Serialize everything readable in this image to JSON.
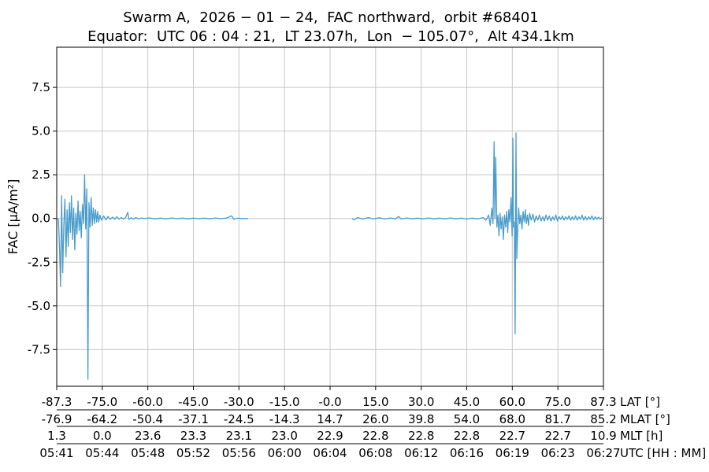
{
  "chart_data": {
    "type": "line",
    "title_line1": "Swarm A,  2026 − 01 − 24,  FAC northward,  orbit #68401",
    "title_line2": "Equator:  UTC 06 : 04 : 21,  LT 23.07h,  Lon  − 105.07°,  Alt 434.1km",
    "ylabel": "FAC [μA/m²]",
    "ylim": [
      -9.6,
      9.8
    ],
    "xlim": [
      0,
      100
    ],
    "grid": true,
    "y_ticks": [
      -7.5,
      -5.0,
      -2.5,
      0.0,
      2.5,
      5.0,
      7.5
    ],
    "y_tick_labels": [
      "-7.5",
      "-5.0",
      "-2.5",
      "0.0",
      "2.5",
      "5.0",
      "7.5"
    ],
    "x_tick_positions": [
      0,
      8.33,
      16.67,
      25,
      33.33,
      41.67,
      50,
      58.33,
      66.67,
      75,
      83.33,
      91.67,
      100
    ],
    "x_axis_rows": [
      {
        "name": "LAT [°]",
        "labels": [
          "-87.3",
          "-75.0",
          "-60.0",
          "-45.0",
          "-30.0",
          "-15.0",
          "-0.0",
          "15.0",
          "30.0",
          "45.0",
          "60.0",
          "75.0",
          "87.3"
        ]
      },
      {
        "name": "MLAT [°]",
        "labels": [
          "-76.9",
          "-64.2",
          "-50.4",
          "-37.1",
          "-24.5",
          "-14.3",
          "14.7",
          "26.0",
          "39.8",
          "54.0",
          "68.0",
          "81.7",
          "85.2"
        ]
      },
      {
        "name": "MLT [h]",
        "labels": [
          "1.3",
          "0.0",
          "23.6",
          "23.3",
          "23.1",
          "23.0",
          "22.9",
          "22.8",
          "22.8",
          "22.8",
          "22.7",
          "22.7",
          "10.9"
        ]
      },
      {
        "name": "UTC [HH : MM]",
        "labels": [
          "05:41",
          "05:44",
          "05:48",
          "05:52",
          "05:56",
          "06:00",
          "06:04",
          "06:08",
          "06:12",
          "06:16",
          "06:19",
          "06:23",
          "06:27"
        ]
      }
    ],
    "series": [
      {
        "color": "#4a9ccb",
        "segments": [
          [
            [
              0.3,
              0.0
            ],
            [
              0.5,
              -1.6
            ],
            [
              0.7,
              -3.9
            ],
            [
              0.9,
              1.3
            ],
            [
              1.1,
              -3.1
            ],
            [
              1.3,
              -0.4
            ],
            [
              1.5,
              1.1
            ],
            [
              1.7,
              -2.2
            ],
            [
              1.9,
              0.5
            ],
            [
              2.1,
              -1.6
            ],
            [
              2.3,
              0.9
            ],
            [
              2.5,
              -0.8
            ],
            [
              2.7,
              1.3
            ],
            [
              2.9,
              -1.2
            ],
            [
              3.1,
              0.6
            ],
            [
              3.3,
              -1.8
            ],
            [
              3.5,
              0.3
            ],
            [
              3.7,
              -0.9
            ],
            [
              3.9,
              1.0
            ],
            [
              4.1,
              -0.7
            ],
            [
              4.3,
              0.4
            ],
            [
              4.5,
              -1.1
            ],
            [
              4.7,
              0.8
            ],
            [
              4.9,
              -0.3
            ],
            [
              5.1,
              2.5
            ],
            [
              5.3,
              -0.6
            ],
            [
              5.5,
              1.7
            ],
            [
              5.7,
              -9.2
            ],
            [
              5.9,
              0.9
            ],
            [
              6.1,
              -0.5
            ],
            [
              6.3,
              1.2
            ],
            [
              6.5,
              -0.4
            ],
            [
              6.7,
              0.6
            ],
            [
              6.9,
              -0.3
            ],
            [
              7.1,
              0.5
            ],
            [
              7.3,
              -0.2
            ],
            [
              7.5,
              0.4
            ],
            [
              7.7,
              -0.2
            ],
            [
              7.9,
              0.2
            ],
            [
              8.2,
              -0.1
            ],
            [
              8.6,
              0.15
            ],
            [
              9.0,
              -0.08
            ],
            [
              9.4,
              0.12
            ],
            [
              9.8,
              -0.05
            ],
            [
              10.2,
              0.08
            ],
            [
              10.6,
              -0.05
            ],
            [
              11.0,
              0.1
            ],
            [
              11.4,
              -0.04
            ],
            [
              11.8,
              0.06
            ],
            [
              12.2,
              -0.03
            ],
            [
              12.6,
              0.05
            ],
            [
              13.0,
              0.35
            ],
            [
              13.2,
              -0.05
            ],
            [
              13.6,
              0.04
            ],
            [
              14.0,
              -0.03
            ],
            [
              14.5,
              0.05
            ],
            [
              15.0,
              -0.02
            ],
            [
              15.5,
              0.03
            ],
            [
              16.0,
              0.0
            ],
            [
              17.0,
              0.03
            ],
            [
              18.0,
              -0.02
            ],
            [
              19.0,
              0.02
            ],
            [
              20.0,
              -0.02
            ],
            [
              21.0,
              0.03
            ],
            [
              22.0,
              -0.01
            ],
            [
              23.0,
              0.02
            ],
            [
              24.0,
              -0.02
            ],
            [
              25.0,
              0.02
            ],
            [
              26.0,
              -0.01
            ],
            [
              27.0,
              0.02
            ],
            [
              28.0,
              -0.02
            ],
            [
              29.0,
              0.03
            ],
            [
              30.0,
              -0.01
            ],
            [
              31.0,
              0.02
            ],
            [
              32.0,
              0.15
            ],
            [
              32.4,
              -0.05
            ],
            [
              33.0,
              0.02
            ],
            [
              34.0,
              -0.01
            ],
            [
              35.0,
              0.0
            ]
          ],
          [
            [
              54.0,
              0.0
            ],
            [
              54.4,
              -0.08
            ],
            [
              55.0,
              0.05
            ],
            [
              56.0,
              -0.03
            ],
            [
              57.0,
              0.05
            ],
            [
              58.0,
              -0.02
            ],
            [
              59.0,
              0.04
            ],
            [
              60.0,
              -0.03
            ],
            [
              61.0,
              0.03
            ],
            [
              62.0,
              -0.02
            ],
            [
              62.5,
              0.12
            ],
            [
              63.0,
              -0.02
            ],
            [
              64.0,
              0.03
            ],
            [
              65.0,
              -0.02
            ],
            [
              66.0,
              0.02
            ],
            [
              67.0,
              -0.02
            ],
            [
              68.0,
              0.03
            ],
            [
              69.0,
              -0.02
            ],
            [
              70.0,
              0.02
            ],
            [
              71.0,
              -0.02
            ],
            [
              72.0,
              0.03
            ],
            [
              73.0,
              -0.02
            ],
            [
              74.0,
              0.02
            ],
            [
              75.0,
              -0.03
            ],
            [
              76.0,
              0.02
            ],
            [
              77.0,
              -0.02
            ],
            [
              78.0,
              0.05
            ],
            [
              78.5,
              -0.1
            ],
            [
              79.0,
              0.2
            ],
            [
              79.3,
              -0.4
            ],
            [
              79.6,
              0.6
            ],
            [
              79.8,
              -0.3
            ],
            [
              80.0,
              4.4
            ],
            [
              80.15,
              0.0
            ],
            [
              80.3,
              3.5
            ],
            [
              80.5,
              -0.5
            ],
            [
              80.7,
              0.2
            ],
            [
              80.9,
              -1.0
            ],
            [
              81.1,
              0.3
            ],
            [
              81.3,
              -0.6
            ],
            [
              81.5,
              0.1
            ],
            [
              81.7,
              -1.2
            ],
            [
              81.9,
              0.2
            ],
            [
              82.1,
              -0.5
            ],
            [
              82.3,
              0.4
            ],
            [
              82.5,
              -0.8
            ],
            [
              82.7,
              0.5
            ],
            [
              82.9,
              -0.2
            ],
            [
              83.1,
              1.2
            ],
            [
              83.3,
              -1.0
            ],
            [
              83.45,
              4.6
            ],
            [
              83.55,
              -0.5
            ],
            [
              83.7,
              -0.2
            ],
            [
              83.85,
              -6.6
            ],
            [
              84.0,
              4.9
            ],
            [
              84.15,
              -2.3
            ],
            [
              84.3,
              -1.0
            ],
            [
              84.5,
              0.6
            ],
            [
              84.7,
              -0.3
            ],
            [
              84.9,
              0.2
            ],
            [
              85.1,
              -0.6
            ],
            [
              85.3,
              0.4
            ],
            [
              85.5,
              -0.2
            ],
            [
              85.7,
              0.5
            ],
            [
              85.9,
              -0.3
            ],
            [
              86.1,
              0.2
            ],
            [
              86.3,
              -0.4
            ],
            [
              86.5,
              0.3
            ],
            [
              86.8,
              -0.1
            ],
            [
              87.1,
              0.25
            ],
            [
              87.4,
              -0.2
            ],
            [
              87.7,
              0.15
            ],
            [
              88.0,
              -0.1
            ],
            [
              88.3,
              0.2
            ],
            [
              88.6,
              -0.15
            ],
            [
              88.9,
              0.1
            ],
            [
              89.2,
              -0.15
            ],
            [
              89.5,
              0.2
            ],
            [
              89.8,
              -0.1
            ],
            [
              90.1,
              0.15
            ],
            [
              90.4,
              -0.15
            ],
            [
              90.7,
              0.1
            ],
            [
              91.0,
              -0.1
            ],
            [
              91.3,
              0.2
            ],
            [
              91.6,
              -0.15
            ],
            [
              91.9,
              0.1
            ],
            [
              92.2,
              -0.05
            ],
            [
              92.5,
              0.15
            ],
            [
              92.8,
              -0.1
            ],
            [
              93.1,
              0.1
            ],
            [
              93.4,
              -0.05
            ],
            [
              93.7,
              0.15
            ],
            [
              94.0,
              -0.1
            ],
            [
              94.3,
              0.1
            ],
            [
              94.6,
              -0.08
            ],
            [
              94.9,
              0.15
            ],
            [
              95.2,
              -0.1
            ],
            [
              95.5,
              0.1
            ],
            [
              95.8,
              -0.05
            ],
            [
              96.1,
              0.2
            ],
            [
              96.4,
              -0.1
            ],
            [
              96.7,
              0.12
            ],
            [
              97.0,
              -0.08
            ],
            [
              97.3,
              0.1
            ],
            [
              97.6,
              -0.05
            ],
            [
              97.9,
              0.15
            ],
            [
              98.2,
              -0.08
            ],
            [
              98.5,
              0.1
            ],
            [
              98.8,
              -0.05
            ],
            [
              99.1,
              0.08
            ],
            [
              99.4,
              -0.05
            ],
            [
              99.7,
              0.05
            ]
          ]
        ]
      }
    ]
  }
}
